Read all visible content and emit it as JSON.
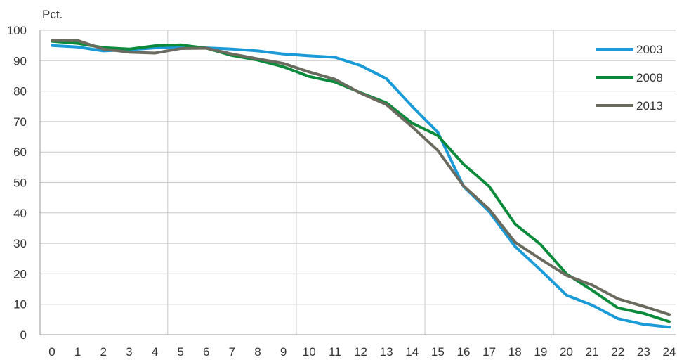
{
  "chart_data": {
    "type": "line",
    "ylabel": "Pct.",
    "ylim": [
      0,
      100
    ],
    "yticks": [
      0,
      10,
      20,
      30,
      40,
      50,
      60,
      70,
      80,
      90,
      100
    ],
    "x": [
      0,
      1,
      2,
      3,
      4,
      5,
      6,
      7,
      8,
      9,
      10,
      11,
      12,
      13,
      14,
      15,
      16,
      17,
      18,
      19,
      20,
      21,
      22,
      23,
      24
    ],
    "xlim": [
      0,
      24
    ],
    "legend_position": "top-right",
    "grid": true,
    "series": [
      {
        "name": "2003",
        "color": "#1a9ad6",
        "values": [
          95.0,
          94.5,
          93.2,
          93.6,
          94.2,
          94.6,
          94.2,
          93.8,
          93.2,
          92.2,
          91.6,
          91.1,
          88.4,
          84.1,
          75.0,
          66.5,
          48.7,
          40.4,
          29.0,
          21.2,
          13.0,
          9.7,
          5.3,
          3.4,
          2.5
        ]
      },
      {
        "name": "2008",
        "color": "#0a8a3a",
        "values": [
          96.4,
          95.7,
          94.3,
          93.8,
          94.9,
          95.2,
          94.1,
          91.7,
          90.2,
          88.0,
          84.8,
          83.0,
          79.5,
          76.2,
          69.5,
          65.4,
          56.0,
          48.7,
          36.4,
          29.6,
          20.0,
          14.6,
          8.8,
          7.0,
          4.3
        ]
      },
      {
        "name": "2013",
        "color": "#6b6a5e",
        "values": [
          96.6,
          96.6,
          93.8,
          92.8,
          92.5,
          94.0,
          94.1,
          92.2,
          90.6,
          89.1,
          86.3,
          83.9,
          79.3,
          75.6,
          68.3,
          60.5,
          48.9,
          41.2,
          30.4,
          24.8,
          19.5,
          16.3,
          11.8,
          9.3,
          6.6
        ]
      }
    ]
  }
}
